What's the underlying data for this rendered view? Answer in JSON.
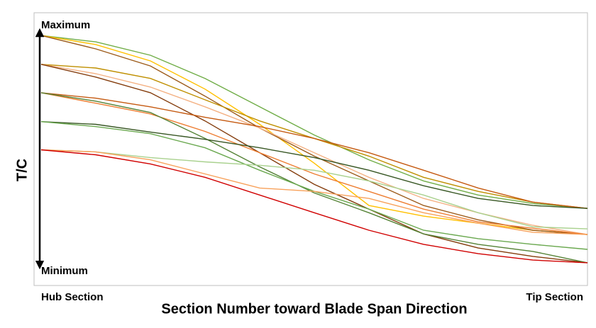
{
  "chart_data": {
    "type": "line",
    "y_label": "T/C",
    "x_label": "Section Number toward Blade Span Direction",
    "annotations": [
      "Maximum",
      "Minimum"
    ],
    "categories": [
      "Hub Section",
      null,
      null,
      null,
      null,
      null,
      null,
      null,
      null,
      null,
      "Tip Section"
    ],
    "ylim": [
      -0.1,
      1.1
    ],
    "series": [
      {
        "color": "#70ad47",
        "values": [
          1.0,
          0.972,
          0.913,
          0.811,
          0.686,
          0.562,
          0.453,
          0.36,
          0.298,
          0.261,
          0.239
        ]
      },
      {
        "color": "#ffc000",
        "values": [
          1.0,
          0.96,
          0.888,
          0.764,
          0.609,
          0.438,
          0.252,
          0.205,
          0.174,
          0.143,
          0.124
        ]
      },
      {
        "color": "#9c5b1a",
        "values": [
          1.0,
          0.941,
          0.866,
          0.733,
          0.593,
          0.469,
          0.36,
          0.252,
          0.189,
          0.143,
          0.124
        ]
      },
      {
        "color": "#bf8f00",
        "values": [
          0.873,
          0.857,
          0.811,
          0.717,
          0.624,
          0.547,
          0.469,
          0.376,
          0.314,
          0.267,
          0.239
        ]
      },
      {
        "color": "#f4b183",
        "values": [
          0.873,
          0.832,
          0.773,
          0.686,
          0.593,
          0.484,
          0.376,
          0.283,
          0.22,
          0.165,
          0.124
        ]
      },
      {
        "color": "#843c0c",
        "values": [
          0.873,
          0.817,
          0.748,
          0.624,
          0.484,
          0.345,
          0.236,
          0.127,
          0.065,
          0.028,
          0.0
        ]
      },
      {
        "color": "#c55a11",
        "values": [
          0.748,
          0.724,
          0.686,
          0.64,
          0.599,
          0.547,
          0.484,
          0.407,
          0.329,
          0.267,
          0.239
        ]
      },
      {
        "color": "#ed7d31",
        "values": [
          0.748,
          0.702,
          0.655,
          0.578,
          0.484,
          0.391,
          0.314,
          0.236,
          0.18,
          0.152,
          0.124
        ]
      },
      {
        "color": "#548235",
        "values": [
          0.748,
          0.711,
          0.661,
          0.547,
          0.422,
          0.307,
          0.22,
          0.127,
          0.081,
          0.05,
          0.0
        ]
      },
      {
        "color": "#375623",
        "values": [
          0.621,
          0.609,
          0.575,
          0.543,
          0.506,
          0.463,
          0.407,
          0.339,
          0.283,
          0.252,
          0.239
        ]
      },
      {
        "color": "#6aa84f",
        "values": [
          0.621,
          0.599,
          0.568,
          0.506,
          0.407,
          0.314,
          0.236,
          0.143,
          0.106,
          0.081,
          0.059
        ]
      },
      {
        "color": "#a9d18e",
        "values": [
          0.497,
          0.488,
          0.463,
          0.444,
          0.429,
          0.407,
          0.36,
          0.298,
          0.22,
          0.158,
          0.149
        ]
      },
      {
        "color": "#f8a15a",
        "values": [
          0.497,
          0.488,
          0.453,
          0.391,
          0.329,
          0.314,
          0.283,
          0.22,
          0.174,
          0.134,
          0.124
        ]
      },
      {
        "color": "#d00000",
        "values": [
          0.497,
          0.475,
          0.435,
          0.376,
          0.298,
          0.22,
          0.143,
          0.081,
          0.04,
          0.012,
          0.0
        ]
      }
    ]
  }
}
